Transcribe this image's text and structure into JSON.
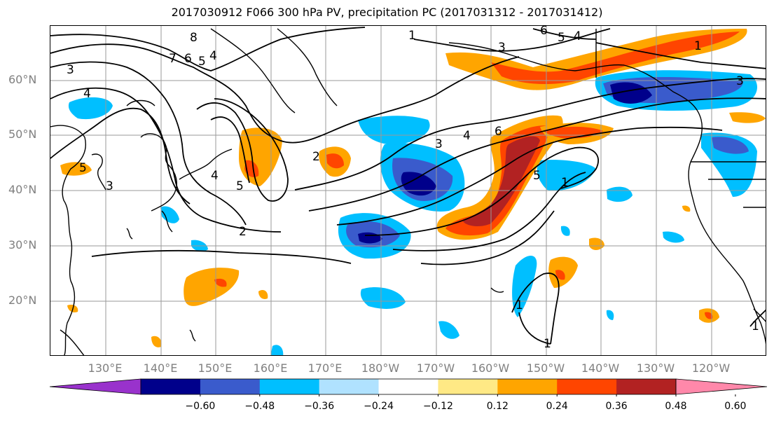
{
  "title": "2017030912 F066 300 hPa PV, precipitation PC (2017031312 - 2017031412)",
  "lat_labels": [
    "60°N",
    "50°N",
    "40°N",
    "30°N",
    "20°N"
  ],
  "lon_labels": [
    "130°E",
    "140°E",
    "150°E",
    "160°E",
    "170°E",
    "180°W",
    "170°W",
    "160°W",
    "150°W",
    "140°W",
    "130°W",
    "120°W"
  ],
  "colorbar": {
    "colors": [
      "#9932CC",
      "#00008B",
      "#3A5BCC",
      "#00BFFF",
      "#B0E2FF",
      "#FFFFFF",
      "#FFE985",
      "#FFA500",
      "#FF4500",
      "#B22222",
      "#FF88AA"
    ],
    "tick_labels": [
      "−0.60",
      "−0.48",
      "−0.36",
      "−0.24",
      "−0.12",
      "0.12",
      "0.24",
      "0.36",
      "0.48",
      "0.60"
    ],
    "ticks": [
      -0.6,
      -0.48,
      -0.36,
      -0.24,
      -0.12,
      0.12,
      0.24,
      0.36,
      0.48,
      0.6
    ]
  },
  "pv_contour_labels": [
    "1",
    "2",
    "3",
    "4",
    "5",
    "6",
    "7",
    "8"
  ]
}
